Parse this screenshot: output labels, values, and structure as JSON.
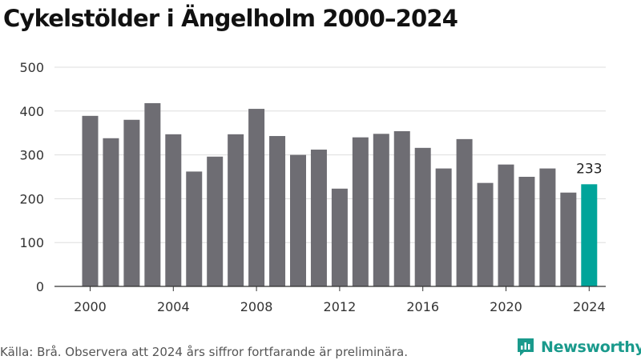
{
  "title": "Cykelstölder i Ängelholm 2000–2024",
  "footer": {
    "source": "Källa: Brå. Observera att 2024 års siffror fortfarande är preliminära.",
    "brand": "Newsworthy"
  },
  "colors": {
    "bar": "#6e6d73",
    "highlight": "#00a49a",
    "brand": "#1a9a8c",
    "grid": "#dddddd",
    "axis": "#333333"
  },
  "icons": {
    "brand_logo": "bar-chart-logo-icon"
  },
  "chart_data": {
    "type": "bar",
    "title": "Cykelstölder i Ängelholm 2000–2024",
    "x": [
      2000,
      2001,
      2002,
      2003,
      2004,
      2005,
      2006,
      2007,
      2008,
      2009,
      2010,
      2011,
      2012,
      2013,
      2014,
      2015,
      2016,
      2017,
      2018,
      2019,
      2020,
      2021,
      2022,
      2023,
      2024
    ],
    "values": [
      389,
      338,
      380,
      418,
      347,
      262,
      296,
      347,
      405,
      343,
      300,
      312,
      223,
      340,
      348,
      354,
      316,
      269,
      336,
      236,
      278,
      250,
      269,
      214,
      233
    ],
    "xticks": [
      "2000",
      "2004",
      "2008",
      "2012",
      "2016",
      "2020",
      "2024"
    ],
    "yticks": [
      "0",
      "100",
      "200",
      "300",
      "400",
      "500"
    ],
    "ylim": [
      0,
      500
    ],
    "highlight": {
      "category": 2024,
      "label": "233"
    },
    "grid": true,
    "legend": "none"
  }
}
